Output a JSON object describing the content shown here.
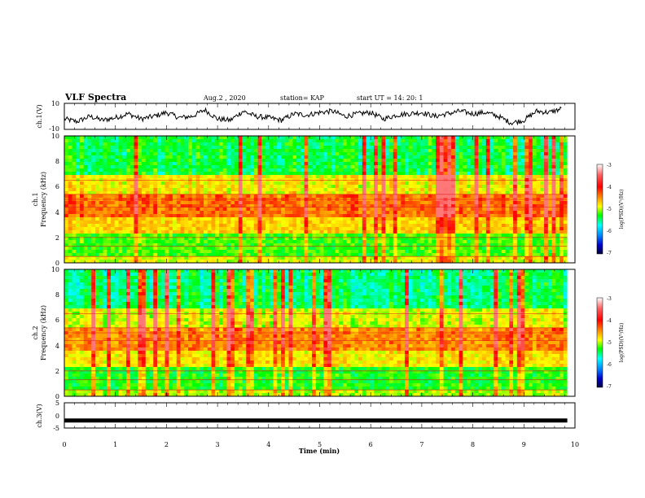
{
  "header": {
    "title": "VLF Spectra",
    "date": "Aug.2 , 2020",
    "station": "station= KAP",
    "start_time": "start UT = 14: 20: 1"
  },
  "colors": {
    "spec_low": "#000080",
    "spec_mid_low": "#00ffff",
    "spec_mid": "#00ff00",
    "spec_mid_high": "#ffff00",
    "spec_high": "#ff0000",
    "spec_max": "#ffffff",
    "waveform": "#000000"
  },
  "chart_data": [
    {
      "type": "line",
      "panel": "ch1_waveform",
      "ylabel": "ch.1(V)",
      "ylim": [
        -10,
        10
      ],
      "yticks": [
        "10",
        "-10"
      ],
      "x": [
        0.0,
        0.25,
        0.5,
        0.75,
        1.0,
        1.25,
        1.5,
        1.75,
        2.0,
        2.25,
        2.5,
        2.75,
        3.0,
        3.25,
        3.5,
        3.75,
        4.0,
        4.25,
        4.5,
        4.75,
        5.0,
        5.25,
        5.5,
        5.75,
        6.0,
        6.25,
        6.5,
        6.75,
        7.0,
        7.25,
        7.5,
        7.75,
        8.0,
        8.25,
        8.5,
        8.75,
        9.0,
        9.25,
        9.5,
        9.75
      ],
      "values": [
        -2,
        -4,
        0,
        -3,
        -1,
        2,
        -2,
        0,
        3,
        -1,
        0,
        5,
        -2,
        -3,
        4,
        0,
        -1,
        -3,
        2,
        1,
        3,
        4,
        0,
        2,
        3,
        -2,
        1,
        2,
        3,
        0,
        2,
        4,
        2,
        3,
        0,
        -5,
        -3,
        4,
        3,
        6
      ]
    },
    {
      "type": "heatmap",
      "panel": "ch1_spectrogram",
      "ylabel": "ch.1\nFrequency (kHz)",
      "ylim": [
        0,
        10
      ],
      "yticks": [
        "0",
        "2",
        "4",
        "6",
        "8",
        "10"
      ],
      "colorbar": {
        "label": "log(PSD)(V²/Hz)",
        "ticks": [
          "-3",
          "-4",
          "-5",
          "-6",
          "-7"
        ],
        "range": [
          -7,
          -3
        ]
      }
    },
    {
      "type": "heatmap",
      "panel": "ch2_spectrogram",
      "ylabel": "ch.2\nFrequency (kHz)",
      "ylim": [
        0,
        10
      ],
      "yticks": [
        "0",
        "2",
        "4",
        "6",
        "8",
        "10"
      ],
      "colorbar": {
        "label": "log(PSD)(V²/Hz)",
        "ticks": [
          "-3",
          "-4",
          "-5",
          "-6",
          "-7"
        ],
        "range": [
          -7,
          -3
        ]
      }
    },
    {
      "type": "line",
      "panel": "ch3_waveform",
      "ylabel": "ch.3(V)",
      "ylim": [
        -5,
        5
      ],
      "yticks": [
        "5",
        "0",
        "-5"
      ],
      "x": [
        0,
        9.85
      ],
      "values": [
        -2,
        -2
      ]
    }
  ],
  "xaxis": {
    "label": "Time (min)",
    "xlim": [
      0,
      10
    ],
    "ticks": [
      "0",
      "1",
      "2",
      "3",
      "4",
      "5",
      "6",
      "7",
      "8",
      "9",
      "10"
    ]
  }
}
